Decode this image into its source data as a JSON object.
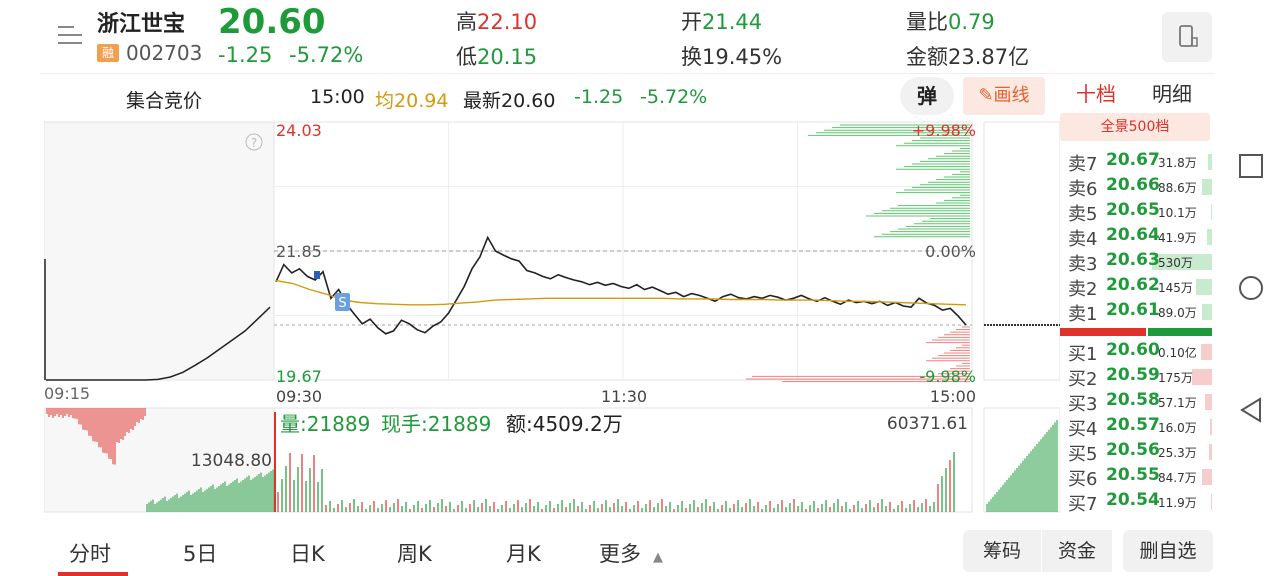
{
  "header": {
    "name": "浙江世宝",
    "tag": "融",
    "code": "002703",
    "price": "20.60",
    "change": "-1.25",
    "change_pct": "-5.72%",
    "high_label": "高",
    "high": "22.10",
    "low_label": "低",
    "low": "20.15",
    "open_label": "开",
    "open": "21.44",
    "turnover_label": "换",
    "turnover": "19.45%",
    "vol_ratio_label": "量比",
    "vol_ratio": "0.79",
    "amount_label": "金额",
    "amount": "23.87亿"
  },
  "subbar": {
    "auction": "集合竞价",
    "time": "15:00",
    "avg_label": "均",
    "avg": "20.94",
    "latest_label": "最新",
    "latest": "20.60",
    "change": "-1.25",
    "change_pct": "-5.72%",
    "dan_label": "弹",
    "draw_label": "画线"
  },
  "orderbook": {
    "tab_active": "十档",
    "tab_detail": "明细",
    "full_view": "全景500档",
    "asks": [
      {
        "label": "卖7",
        "price": "20.67",
        "vol": "31.8万",
        "fill": 0.06
      },
      {
        "label": "卖6",
        "price": "20.66",
        "vol": "88.6万",
        "fill": 0.17
      },
      {
        "label": "卖5",
        "price": "20.65",
        "vol": "10.1万",
        "fill": 0.02
      },
      {
        "label": "卖4",
        "price": "20.64",
        "vol": "41.9万",
        "fill": 0.08
      },
      {
        "label": "卖3",
        "price": "20.63",
        "vol": "530万",
        "fill": 1.0
      },
      {
        "label": "卖2",
        "price": "20.62",
        "vol": "145万",
        "fill": 0.27
      },
      {
        "label": "卖1",
        "price": "20.61",
        "vol": "89.0万",
        "fill": 0.17
      }
    ],
    "bids": [
      {
        "label": "买1",
        "price": "20.60",
        "vol": "0.10亿",
        "fill": 0.19
      },
      {
        "label": "买2",
        "price": "20.59",
        "vol": "175万",
        "fill": 0.33
      },
      {
        "label": "买3",
        "price": "20.58",
        "vol": "57.1万",
        "fill": 0.11
      },
      {
        "label": "买4",
        "price": "20.57",
        "vol": "16.0万",
        "fill": 0.03
      },
      {
        "label": "买5",
        "price": "20.56",
        "vol": "25.3万",
        "fill": 0.05
      },
      {
        "label": "买6",
        "price": "20.55",
        "vol": "84.7万",
        "fill": 0.16
      },
      {
        "label": "买7",
        "price": "20.54",
        "vol": "11.9万",
        "fill": 0.02
      }
    ]
  },
  "chart_data": {
    "type": "line",
    "price_high_label": "24.03",
    "price_low_label": "19.67",
    "prev_close_label": "21.85",
    "pct_high_label": "+9.98%",
    "pct_zero_label": "0.00%",
    "pct_low_label": "-9.98%",
    "time_labels": [
      "09:15",
      "09:30",
      "11:30",
      "15:00"
    ],
    "ylim": [
      19.67,
      24.03
    ],
    "prev_close": 21.85,
    "price_series": [
      21.33,
      21.62,
      21.48,
      21.55,
      21.42,
      21.36,
      21.5,
      21.05,
      21.2,
      20.95,
      20.78,
      20.62,
      20.7,
      20.55,
      20.45,
      20.5,
      20.68,
      20.62,
      20.52,
      20.47,
      20.58,
      20.65,
      20.8,
      21.02,
      21.25,
      21.55,
      21.75,
      22.08,
      21.85,
      21.78,
      21.72,
      21.68,
      21.52,
      21.48,
      21.42,
      21.38,
      21.45,
      21.4,
      21.36,
      21.33,
      21.28,
      21.32,
      21.27,
      21.3,
      21.25,
      21.22,
      21.28,
      21.2,
      21.24,
      21.18,
      21.12,
      21.15,
      21.08,
      21.13,
      21.1,
      21.05,
      21.0,
      21.08,
      21.12,
      21.06,
      21.04,
      21.08,
      21.05,
      21.1,
      21.07,
      21.02,
      21.05,
      21.1,
      21.04,
      21.0,
      21.06,
      21.0,
      20.95,
      21.02,
      20.98,
      21.0,
      20.96,
      21.0,
      20.93,
      20.98,
      20.92,
      20.9,
      21.05,
      20.97,
      20.93,
      20.85,
      20.88,
      20.75,
      20.6
    ],
    "avg_series": [
      21.35,
      21.3,
      21.2,
      21.12,
      21.02,
      20.98,
      20.96,
      20.95,
      20.94,
      20.94,
      20.95,
      20.97,
      20.99,
      21.02,
      21.03,
      21.04,
      21.05,
      21.05,
      21.05,
      21.05,
      21.05,
      21.05,
      21.05,
      21.05,
      21.04,
      21.04,
      21.04,
      21.03,
      21.03,
      21.03,
      21.02,
      21.02,
      21.02,
      21.01,
      21.0,
      21.0,
      20.99,
      20.98,
      20.97,
      20.96,
      20.95,
      20.94
    ],
    "auction_series": [
      19.67,
      19.67,
      19.67,
      19.67,
      19.67,
      19.67,
      19.67,
      19.67,
      19.67,
      19.68,
      19.72,
      19.8,
      19.92,
      20.05,
      20.2,
      20.35,
      20.5,
      20.7,
      20.9
    ],
    "after_close_price": 20.6,
    "volume_label": "量:21889",
    "hand_label": "现手:21889",
    "amount_label": "额:4509.2万",
    "volume_max_label": "60371.61",
    "auction_volume_label": "13048.80"
  },
  "bottom_tabs": [
    "分时",
    "5日",
    "日K",
    "周K",
    "月K",
    "更多"
  ],
  "bottom_buttons": [
    "筹码",
    "资金",
    "删自选"
  ],
  "colors": {
    "up": "#e0312b",
    "down": "#1f9a3b",
    "avg": "#d49a0e",
    "accent": "#e8602c"
  }
}
